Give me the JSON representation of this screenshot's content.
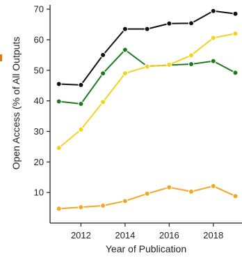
{
  "chart_data": {
    "type": "line",
    "title": "",
    "xlabel": "Year of Publication",
    "ylabel": "Open Access (% of All Outputs",
    "xlim": [
      2010.6,
      2019.3
    ],
    "ylim": [
      0,
      73
    ],
    "x": [
      2011,
      2012,
      2013,
      2014,
      2015,
      2016,
      2017,
      2018,
      2019
    ],
    "x_ticks": [
      2012,
      2014,
      2016,
      2018
    ],
    "y_ticks": [
      10,
      20,
      30,
      40,
      50,
      60,
      70
    ],
    "grid": false,
    "legend": "none",
    "series": [
      {
        "color": "#111111",
        "values": [
          45.5,
          45.2,
          55.0,
          63.5,
          63.5,
          65.3,
          65.4,
          69.4,
          68.5
        ]
      },
      {
        "color": "#1f7a1f",
        "values": [
          39.8,
          39.0,
          49.0,
          56.7,
          51.3,
          51.7,
          52.0,
          53.0,
          49.2
        ]
      },
      {
        "color": "#f5d21c",
        "values": [
          24.6,
          30.6,
          39.6,
          49.0,
          51.2,
          51.8,
          54.9,
          60.6,
          62.0
        ]
      },
      {
        "color": "#f5a623",
        "values": [
          4.7,
          5.2,
          5.7,
          7.2,
          9.6,
          11.7,
          10.3,
          12.1,
          8.8
        ]
      }
    ]
  }
}
